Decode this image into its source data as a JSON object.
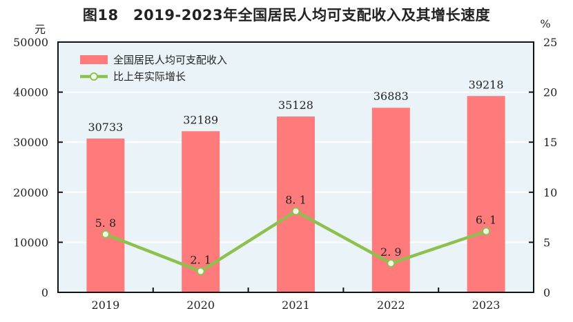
{
  "chart_data": {
    "type": "bar+line",
    "title": "图18　2019-2023年全国居民人均可支配收入及其增长速度",
    "categories": [
      "2019",
      "2020",
      "2021",
      "2022",
      "2023"
    ],
    "series": [
      {
        "name": "全国居民人均可支配收入",
        "type": "bar",
        "axis": "left",
        "values": [
          30733,
          32189,
          35128,
          36883,
          39218
        ],
        "color": "#ff7b7b"
      },
      {
        "name": "比上年实际增长",
        "type": "line",
        "axis": "right",
        "values": [
          5.8,
          2.1,
          8.1,
          2.9,
          6.1
        ],
        "color": "#8dc04f"
      }
    ],
    "y_left": {
      "unit": "元",
      "ylim": [
        0,
        50000
      ],
      "ticks": [
        0,
        10000,
        20000,
        30000,
        40000,
        50000
      ]
    },
    "y_right": {
      "unit": "%",
      "ylim": [
        0,
        25
      ],
      "ticks": [
        0,
        5,
        10,
        15,
        20,
        25
      ]
    },
    "grid": true,
    "legend_position": "top-left",
    "background": "#eaf4f8"
  }
}
